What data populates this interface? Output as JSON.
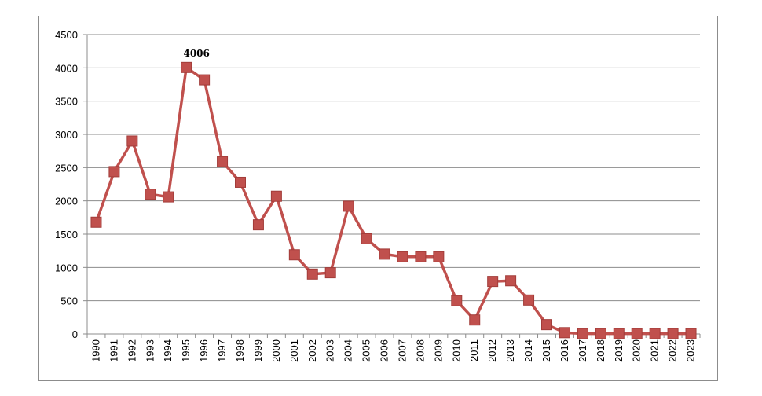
{
  "chart_data": {
    "type": "line",
    "title": "",
    "xlabel": "",
    "ylabel": "",
    "x": [
      "1990",
      "1991",
      "1992",
      "1993",
      "1994",
      "1995",
      "1996",
      "1997",
      "1998",
      "1999",
      "2000",
      "2001",
      "2002",
      "2003",
      "2004",
      "2005",
      "2006",
      "2007",
      "2008",
      "2009",
      "2010",
      "2011",
      "2012",
      "2013",
      "2014",
      "2015",
      "2016",
      "2017",
      "2018",
      "2019",
      "2020",
      "2021",
      "2022",
      "2023"
    ],
    "series": [
      {
        "name": "",
        "values": [
          1680,
          2440,
          2900,
          2100,
          2060,
          4006,
          3820,
          2590,
          2280,
          1640,
          2070,
          1190,
          900,
          920,
          1920,
          1430,
          1200,
          1160,
          1160,
          1160,
          500,
          210,
          790,
          800,
          510,
          140,
          20,
          5,
          5,
          5,
          5,
          5,
          5,
          5
        ]
      }
    ],
    "ylim": [
      0,
      4500
    ],
    "yticks": [
      0,
      500,
      1000,
      1500,
      2000,
      2500,
      3000,
      3500,
      4000,
      4500
    ],
    "grid": true,
    "legend": "none",
    "annotations": [
      {
        "index": 5,
        "text": "4006"
      }
    ],
    "colors": {
      "series": "#c0504d",
      "marker": "#c0504d",
      "marker_edge": "#a23c39",
      "grid": "#8c8c8c",
      "axis": "#8c8c8c"
    }
  }
}
